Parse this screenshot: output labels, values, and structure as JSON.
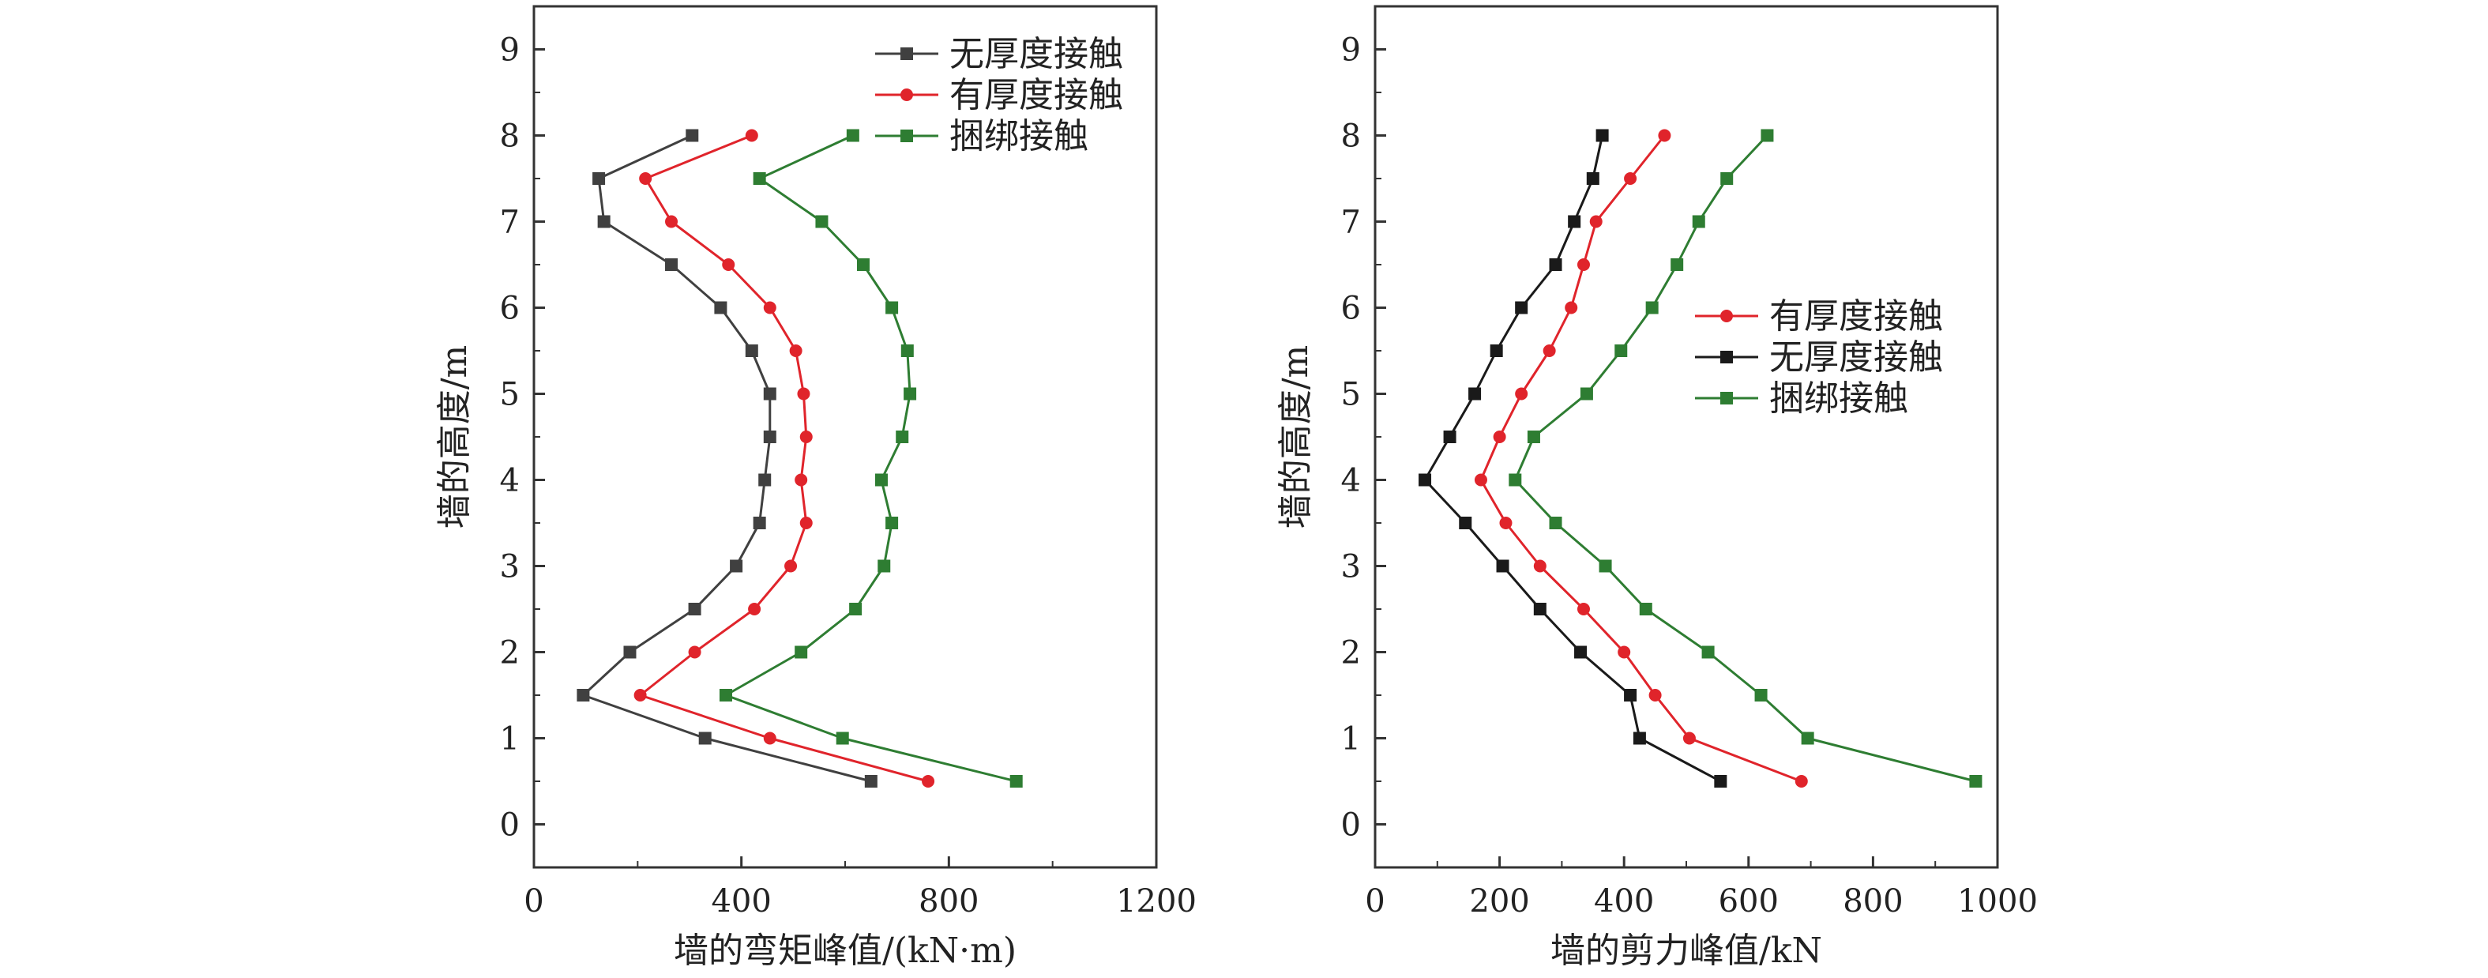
{
  "chart_data": [
    {
      "type": "line",
      "orientation": "vertical",
      "xlabel": "墙的弯矩峰值/(kN·m)",
      "ylabel": "墙的高度/m",
      "xlim": [
        0,
        1200
      ],
      "ylim": [
        -0.5,
        9.5
      ],
      "xticks": [
        0,
        400,
        800,
        1200
      ],
      "yticks": [
        0,
        1,
        2,
        3,
        4,
        5,
        6,
        7,
        8,
        9
      ],
      "legend_position": "top-right",
      "series": [
        {
          "name": "无厚度接触",
          "color": "#404040",
          "marker": "square",
          "points": [
            [
              650,
              0.5
            ],
            [
              330,
              1
            ],
            [
              95,
              1.5
            ],
            [
              185,
              2
            ],
            [
              310,
              2.5
            ],
            [
              390,
              3
            ],
            [
              435,
              3.5
            ],
            [
              445,
              4
            ],
            [
              455,
              4.5
            ],
            [
              455,
              5
            ],
            [
              420,
              5.5
            ],
            [
              360,
              6
            ],
            [
              265,
              6.5
            ],
            [
              135,
              7
            ],
            [
              125,
              7.5
            ],
            [
              305,
              8
            ]
          ]
        },
        {
          "name": "有厚度接触",
          "color": "#e0242b",
          "marker": "circle",
          "points": [
            [
              760,
              0.5
            ],
            [
              455,
              1
            ],
            [
              205,
              1.5
            ],
            [
              310,
              2
            ],
            [
              425,
              2.5
            ],
            [
              495,
              3
            ],
            [
              525,
              3.5
            ],
            [
              515,
              4
            ],
            [
              525,
              4.5
            ],
            [
              520,
              5
            ],
            [
              505,
              5.5
            ],
            [
              455,
              6
            ],
            [
              375,
              6.5
            ],
            [
              265,
              7
            ],
            [
              215,
              7.5
            ],
            [
              420,
              8
            ]
          ]
        },
        {
          "name": "捆绑接触",
          "color": "#2e7d32",
          "marker": "square",
          "points": [
            [
              930,
              0.5
            ],
            [
              595,
              1
            ],
            [
              370,
              1.5
            ],
            [
              515,
              2
            ],
            [
              620,
              2.5
            ],
            [
              675,
              3
            ],
            [
              690,
              3.5
            ],
            [
              670,
              4
            ],
            [
              710,
              4.5
            ],
            [
              725,
              5
            ],
            [
              720,
              5.5
            ],
            [
              690,
              6
            ],
            [
              635,
              6.5
            ],
            [
              555,
              7
            ],
            [
              435,
              7.5
            ],
            [
              615,
              8
            ]
          ]
        }
      ]
    },
    {
      "type": "line",
      "orientation": "vertical",
      "xlabel": "墙的剪力峰值/kN",
      "ylabel": "墙的高度/m",
      "xlim": [
        0,
        1000
      ],
      "ylim": [
        -0.5,
        9.5
      ],
      "xticks": [
        0,
        200,
        400,
        600,
        800,
        1000
      ],
      "yticks": [
        0,
        1,
        2,
        3,
        4,
        5,
        6,
        7,
        8,
        9
      ],
      "legend_position": "right",
      "series": [
        {
          "name": "有厚度接触",
          "color": "#e0242b",
          "marker": "circle",
          "points": [
            [
              685,
              0.5
            ],
            [
              505,
              1
            ],
            [
              450,
              1.5
            ],
            [
              400,
              2
            ],
            [
              335,
              2.5
            ],
            [
              265,
              3
            ],
            [
              210,
              3.5
            ],
            [
              170,
              4
            ],
            [
              200,
              4.5
            ],
            [
              235,
              5
            ],
            [
              280,
              5.5
            ],
            [
              315,
              6
            ],
            [
              335,
              6.5
            ],
            [
              355,
              7
            ],
            [
              410,
              7.5
            ],
            [
              465,
              8
            ]
          ]
        },
        {
          "name": "无厚度接触",
          "color": "#1a1a1a",
          "marker": "square",
          "points": [
            [
              555,
              0.5
            ],
            [
              425,
              1
            ],
            [
              410,
              1.5
            ],
            [
              330,
              2
            ],
            [
              265,
              2.5
            ],
            [
              205,
              3
            ],
            [
              145,
              3.5
            ],
            [
              80,
              4
            ],
            [
              120,
              4.5
            ],
            [
              160,
              5
            ],
            [
              195,
              5.5
            ],
            [
              235,
              6
            ],
            [
              290,
              6.5
            ],
            [
              320,
              7
            ],
            [
              350,
              7.5
            ],
            [
              365,
              8
            ]
          ]
        },
        {
          "name": "捆绑接触",
          "color": "#2e7d32",
          "marker": "square",
          "points": [
            [
              965,
              0.5
            ],
            [
              695,
              1
            ],
            [
              620,
              1.5
            ],
            [
              535,
              2
            ],
            [
              435,
              2.5
            ],
            [
              370,
              3
            ],
            [
              290,
              3.5
            ],
            [
              225,
              4
            ],
            [
              255,
              4.5
            ],
            [
              340,
              5
            ],
            [
              395,
              5.5
            ],
            [
              445,
              6
            ],
            [
              485,
              6.5
            ],
            [
              520,
              7
            ],
            [
              565,
              7.5
            ],
            [
              630,
              8
            ]
          ]
        }
      ]
    }
  ]
}
